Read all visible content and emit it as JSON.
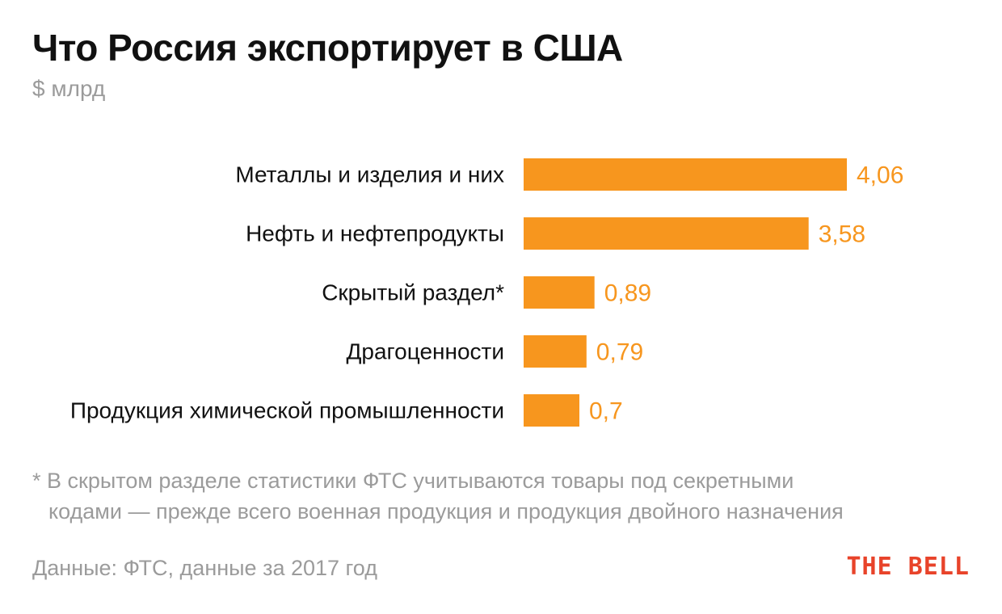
{
  "chart_data": {
    "type": "bar",
    "orientation": "horizontal",
    "title": "Что Россия экспортирует в США",
    "subtitle": "$ млрд",
    "categories": [
      "Металлы и изделия и них",
      "Нефть и нефтепродукты",
      "Скрытый раздел*",
      "Драгоценности",
      "Продукция химической промышленности"
    ],
    "values": [
      4.06,
      3.58,
      0.89,
      0.79,
      0.7
    ],
    "value_labels": [
      "4,06",
      "3,58",
      "0,89",
      "0,79",
      "0,7"
    ],
    "xlim": [
      0,
      4.06
    ],
    "grid": false,
    "xlabel": "",
    "ylabel": ""
  },
  "footnote": {
    "line1": "* В скрытом разделе статистики ФТС учитываются товары под секретными",
    "line2": "кодами — прежде всего военная продукция и продукция двойного назначения"
  },
  "source": "Данные: ФТС, данные за 2017 год",
  "brand": "THE BELL",
  "colors": {
    "bar": "#F7961E",
    "value_label": "#F7961E",
    "brand": "#E8432A",
    "muted_text": "#9B9B9B",
    "title_text": "#111111"
  }
}
